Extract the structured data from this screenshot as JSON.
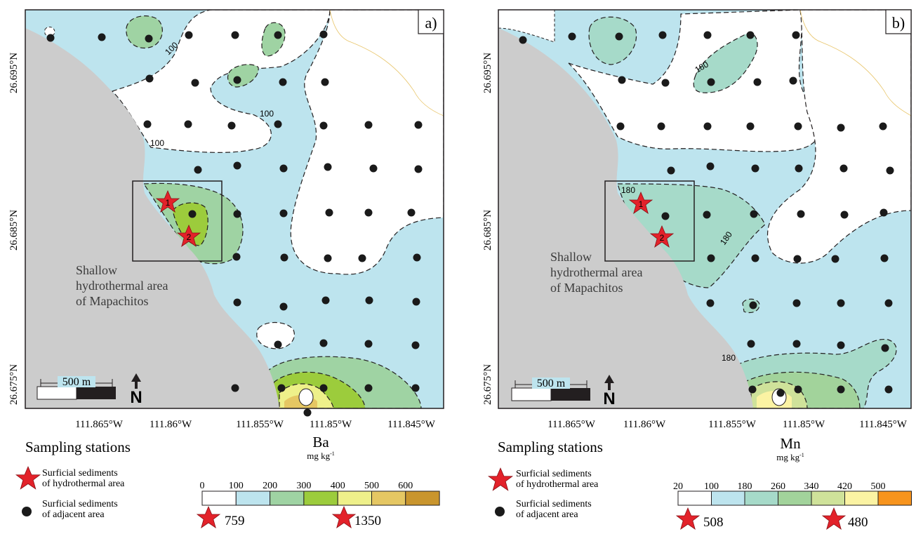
{
  "panels": [
    {
      "id": "a",
      "label": "a)",
      "element": "Ba",
      "unit": "mg kg-1",
      "unit_base": "mg kg",
      "unit_exp": "-1",
      "contour_label": "100",
      "contour_label_2": "100",
      "contour_label_3": "100",
      "legend_breaks": [
        "0",
        "100",
        "200",
        "300",
        "400",
        "500",
        "600"
      ],
      "legend_colors": [
        "#ffffff",
        "#bde4ee",
        "#9fd3a3",
        "#9ccc3c",
        "#eef08a",
        "#e5c763",
        "#c9952d"
      ],
      "star_values": [
        "759",
        "1350"
      ]
    },
    {
      "id": "b",
      "label": "b)",
      "element": "Mn",
      "unit": "mg kg-1",
      "unit_base": "mg kg",
      "unit_exp": "-1",
      "contour_label": "180",
      "contour_label_2": "180",
      "contour_label_3": "180",
      "legend_breaks": [
        "20",
        "100",
        "180",
        "260",
        "340",
        "420",
        "500"
      ],
      "legend_colors": [
        "#ffffff",
        "#bde4ee",
        "#a6dac9",
        "#a2d39b",
        "#cfe29a",
        "#fbf3a3",
        "#f7941d"
      ],
      "star_values": [
        "508",
        "480"
      ]
    }
  ],
  "axes": {
    "y_ticks": [
      "26.695°N",
      "26.685°N",
      "26.675°N"
    ],
    "x_ticks": [
      "111.865°W",
      "111.86°W",
      "111.855°W",
      "111.85°W",
      "111.845°W"
    ]
  },
  "scale_bar": "500 m",
  "north_label": "N",
  "area_label_lines": [
    "Shallow",
    "hydrothermal area",
    "of Mapachitos"
  ],
  "star_labels": [
    "1",
    "2"
  ],
  "legend": {
    "title": "Sampling stations",
    "star_label_lines": [
      "Surficial sediments",
      "of hydrothermal area"
    ],
    "dot_label_lines": [
      "Surficial sediments",
      "of adjacent area"
    ]
  },
  "colors": {
    "land": "#cccccc",
    "water_low": "#ffffff",
    "star": "#e3222a",
    "station": "#1a1a1a",
    "coast_line": "#e8c56a"
  }
}
